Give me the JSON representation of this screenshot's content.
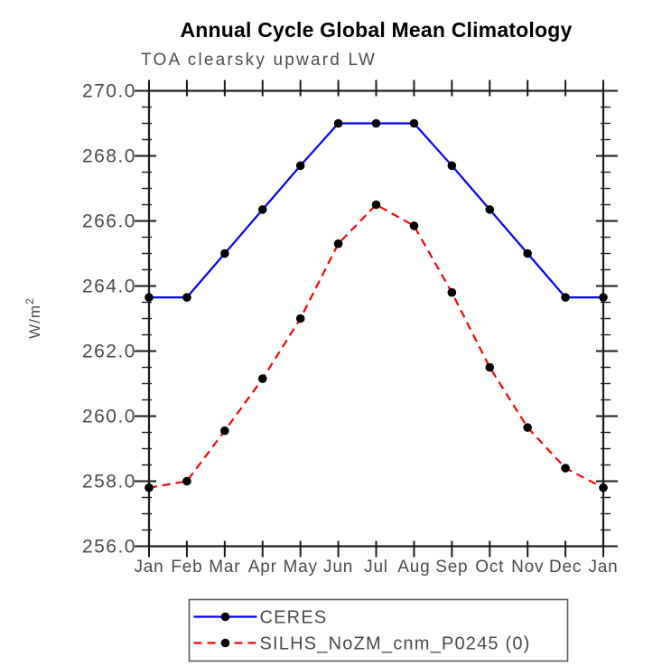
{
  "header": {
    "title": "Annual Cycle Global Mean Climatology",
    "subtitle": "TOA clearsky upward LW"
  },
  "chart_data": {
    "type": "line",
    "title": "Annual Cycle Global Mean Climatology",
    "subtitle": "TOA clearsky upward LW",
    "ylabel": {
      "text": "W/m",
      "exponent": "2"
    },
    "xlabel": "",
    "x_categories": [
      "Jan",
      "Feb",
      "Mar",
      "Apr",
      "May",
      "Jun",
      "Jul",
      "Aug",
      "Sep",
      "Oct",
      "Nov",
      "Dec",
      "Jan"
    ],
    "ylim": [
      256.0,
      270.0
    ],
    "ytick_step": 2.0,
    "ytick_minor_step": 0.5,
    "ytick_labels": [
      "256.0",
      "258.0",
      "260.0",
      "262.0",
      "264.0",
      "266.0",
      "268.0",
      "270.0"
    ],
    "grid": false,
    "legend_position": "bottom-center",
    "series": [
      {
        "name": "CERES",
        "color": "#0000ff",
        "line_style": "solid",
        "marker": "filled-circle",
        "marker_color": "#000000",
        "values": [
          263.65,
          263.65,
          265.0,
          266.35,
          267.7,
          269.0,
          269.0,
          269.0,
          267.7,
          266.35,
          265.0,
          263.65,
          263.65
        ]
      },
      {
        "name": "SILHS_NoZM_cnm_P0245 (0)",
        "color": "#ff0000",
        "line_style": "dashed",
        "marker": "filled-circle",
        "marker_color": "#000000",
        "values": [
          257.8,
          258.0,
          259.55,
          261.15,
          263.0,
          265.3,
          266.5,
          265.85,
          263.8,
          261.5,
          259.65,
          258.4,
          257.8
        ]
      }
    ],
    "axis_color": "#000000",
    "tick_label_color": "#4a4a4a"
  }
}
